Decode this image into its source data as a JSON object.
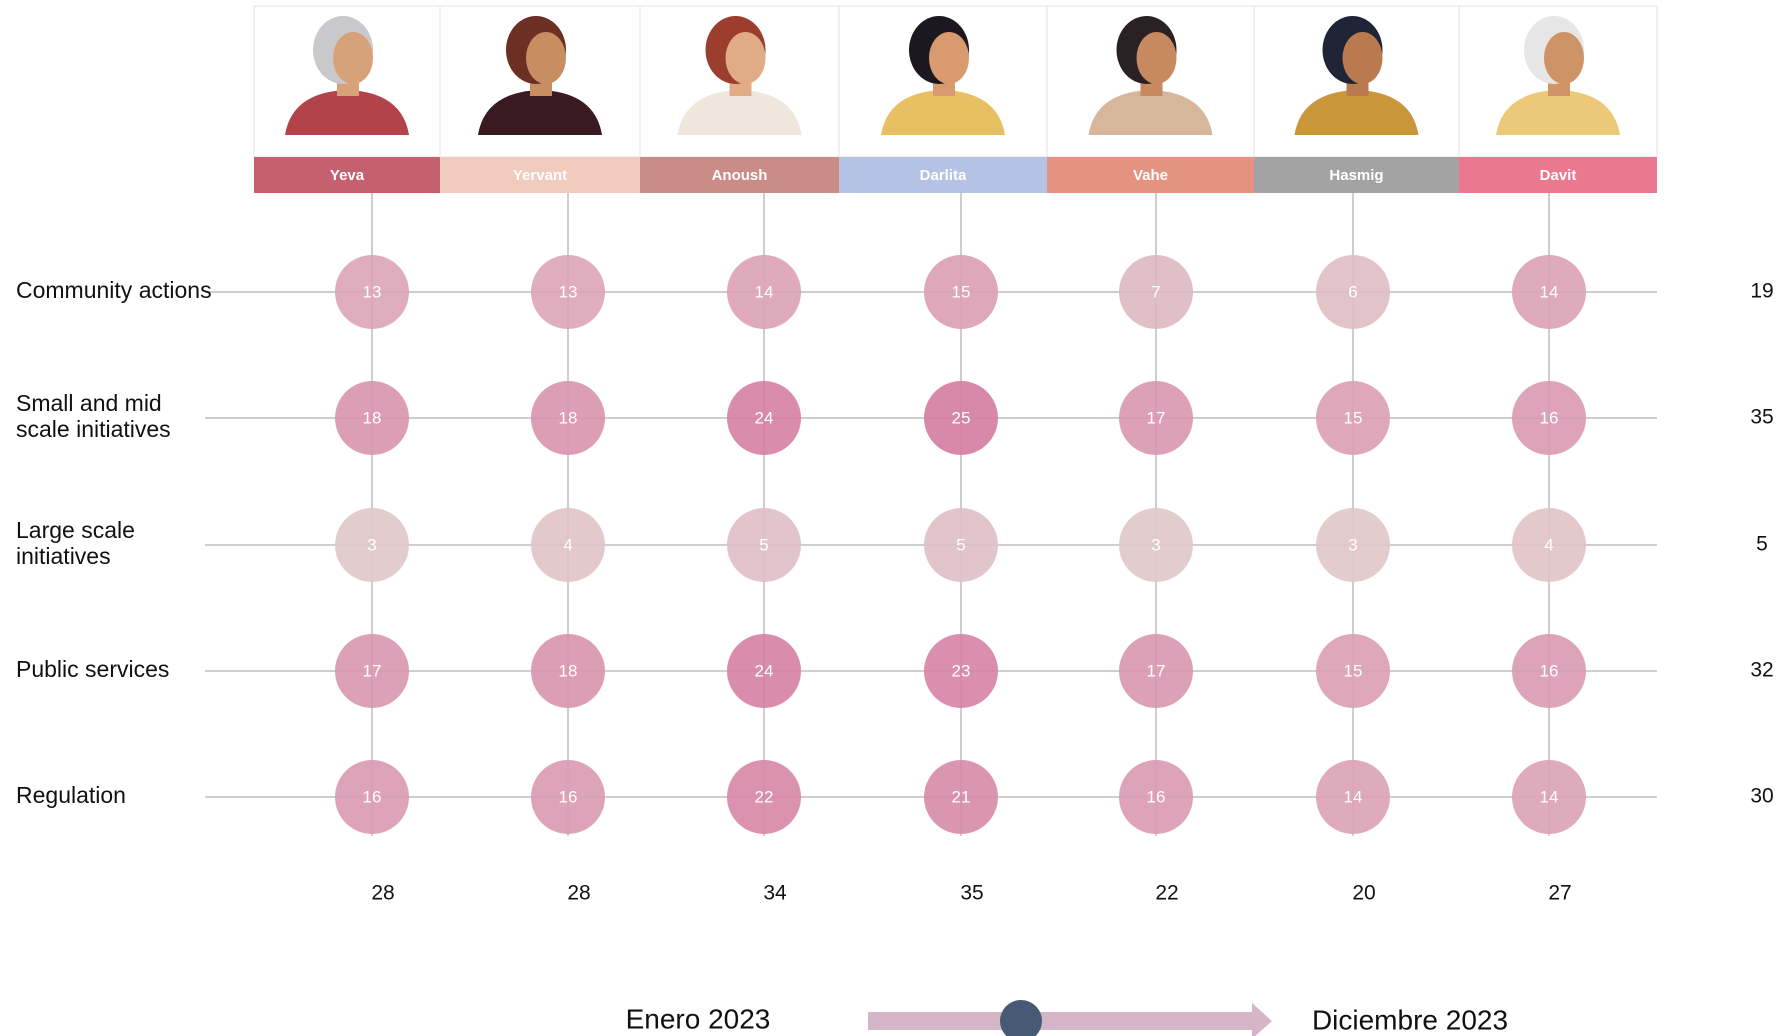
{
  "personas": [
    {
      "name": "Yeva",
      "color": "#c4606f"
    },
    {
      "name": "Yervant",
      "color": "#f2cbbf"
    },
    {
      "name": "Anoush",
      "color": "#c98c86"
    },
    {
      "name": "Darlita",
      "color": "#b4c3e3"
    },
    {
      "name": "Vahe",
      "color": "#e3937f"
    },
    {
      "name": "Hasmig",
      "color": "#a3a3a3"
    },
    {
      "name": "Davit",
      "color": "#ea788e"
    }
  ],
  "rows": [
    {
      "label": "Community actions",
      "values": [
        13,
        13,
        14,
        15,
        7,
        6,
        14
      ],
      "total": 19
    },
    {
      "label": "Small and mid scale initiatives",
      "values": [
        18,
        18,
        24,
        25,
        17,
        15,
        16
      ],
      "total": 35
    },
    {
      "label": "Large scale initiatives",
      "values": [
        3,
        4,
        5,
        5,
        3,
        3,
        4
      ],
      "total": 5
    },
    {
      "label": "Public services",
      "values": [
        17,
        18,
        24,
        23,
        17,
        15,
        16
      ],
      "total": 32
    },
    {
      "label": "Regulation",
      "values": [
        16,
        16,
        22,
        21,
        16,
        14,
        14
      ],
      "total": 30
    }
  ],
  "column_totals": [
    28,
    28,
    34,
    35,
    22,
    20,
    27
  ],
  "timeline": {
    "start": "Enero 2023",
    "end": "Diciembre 2023"
  }
}
